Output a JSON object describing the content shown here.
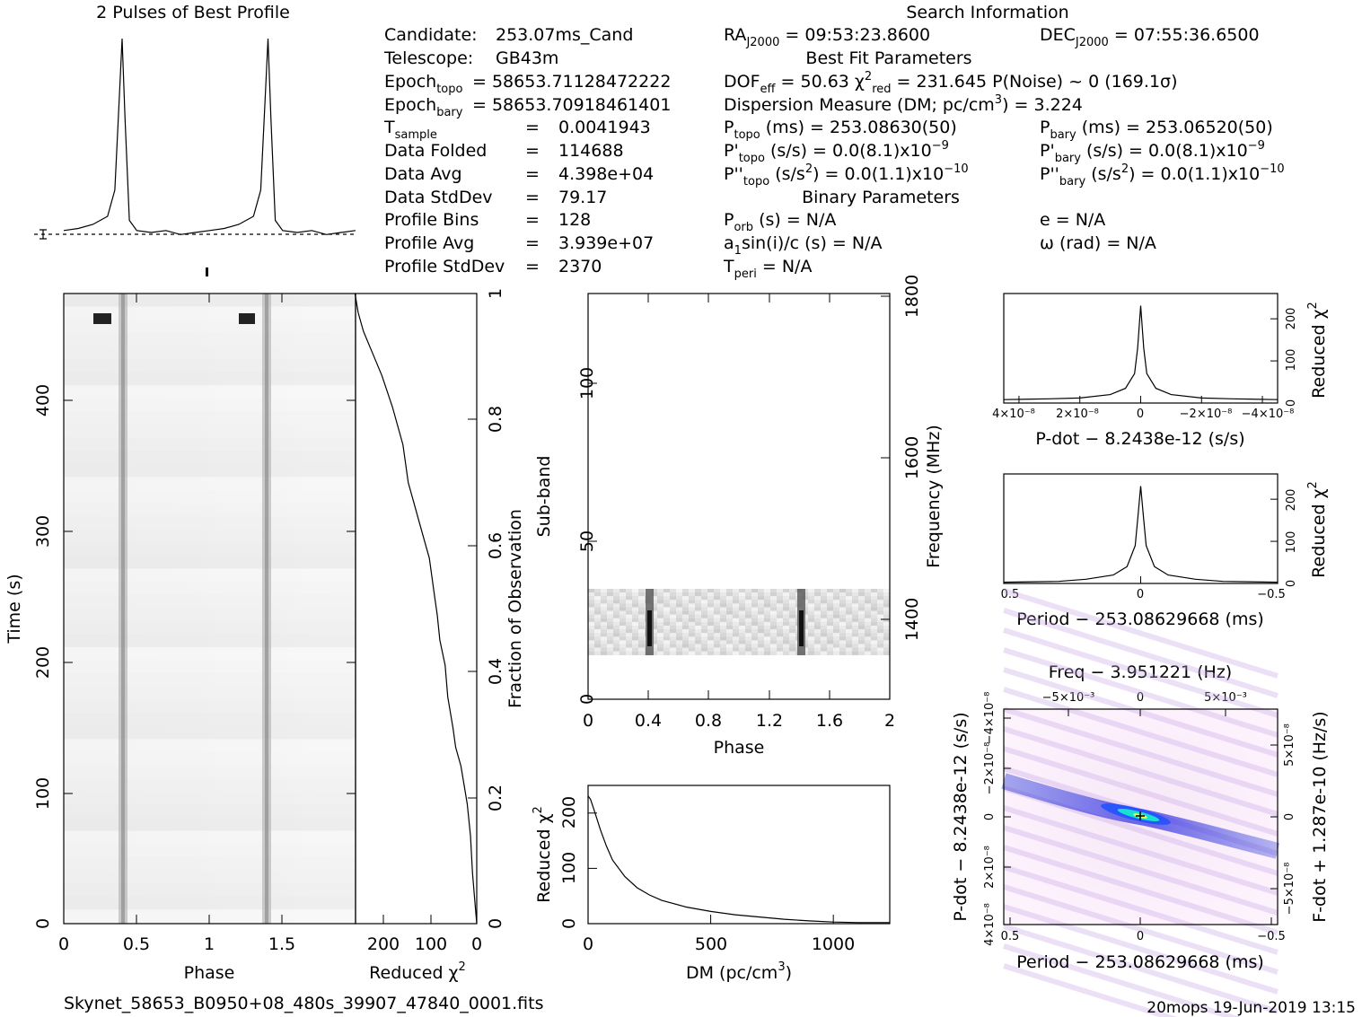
{
  "page_title": "2 Pulses of Best Profile",
  "search_title": "Search Information",
  "candidate_info": [
    {
      "label": "Candidate:",
      "value": "253.07ms_Cand"
    },
    {
      "label": "Telescope:",
      "value": "GB43m"
    },
    {
      "label": "Epoch topo",
      "value": "= 58653.71128472222"
    },
    {
      "label": "Epoch bary",
      "value": "= 58653.70918461401"
    },
    {
      "label": "T sample",
      "value": "0.0041943"
    },
    {
      "label": "Data Folded",
      "value": "114688"
    },
    {
      "label": "Data Avg",
      "value": "4.398e+04"
    },
    {
      "label": "Data StdDev",
      "value": "79.17"
    },
    {
      "label": "Profile Bins",
      "value": "128"
    },
    {
      "label": "Profile Avg",
      "value": "3.939e+07"
    },
    {
      "label": "Profile StdDev",
      "value": "2370"
    }
  ],
  "search_info": {
    "ra": "RA J2000 = 09:53:23.8600",
    "dec": "DEC J2000 = 07:55:36.6500",
    "best_fit_title": "Best Fit Parameters",
    "dof_line": "DOF eff = 50.63  χ² red = 231.645  P(Noise) ~ 0   (169.1σ)",
    "dm_line": "Dispersion Measure (DM; pc/cm³) = 3.224",
    "p_topo": "P topo (ms) =  253.08630(50)",
    "p_bary": "P bary (ms) =  253.06520(50)",
    "pd_topo": "P' topo (s/s) = 0.0(8.1)x10⁻⁹",
    "pd_bary": "P' bary (s/s) = 0.0(8.1)x10⁻⁹",
    "pdd_topo": "P'' topo (s/s²) = 0.0(1.1)x10⁻¹⁰",
    "pdd_bary": "P'' bary (s/s²) = 0.0(1.1)x10⁻¹⁰",
    "binary_title": "Binary Parameters",
    "p_orb": "P orb (s) = N/A",
    "e": "e = N/A",
    "a1sini": "a₁sin(i)/c (s) = N/A",
    "omega": "ω (rad) = N/A",
    "t_peri": "T peri = N/A"
  },
  "footer": {
    "filename": "Skynet_58653_B0950+08_480s_39907_47840_0001.fits",
    "stamp": "20mops 19-Jun-2019 13:15"
  },
  "chart_data": [
    {
      "id": "profile",
      "type": "line",
      "title": "2 Pulses of Best Profile",
      "x": [
        0,
        0.1,
        0.2,
        0.3,
        0.35,
        0.38,
        0.4,
        0.42,
        0.45,
        0.5,
        0.6,
        0.7,
        0.8,
        0.9,
        1.0,
        1.1,
        1.2,
        1.3,
        1.35,
        1.38,
        1.4,
        1.42,
        1.45,
        1.5,
        1.6,
        1.7,
        1.8,
        1.9,
        2.0
      ],
      "values": [
        0.05,
        0.06,
        0.08,
        0.12,
        0.25,
        0.7,
        1.0,
        0.6,
        0.1,
        0.05,
        0.04,
        0.05,
        0.03,
        0.04,
        0.05,
        0.06,
        0.08,
        0.12,
        0.25,
        0.7,
        1.0,
        0.6,
        0.1,
        0.05,
        0.04,
        0.05,
        0.03,
        0.04,
        0.05
      ]
    },
    {
      "id": "time-phase",
      "type": "heatmap",
      "xlabel": "Phase",
      "ylabel": "Time (s)",
      "x_ticks": [
        "0",
        "0.5",
        "1",
        "1.5"
      ],
      "y_ticks": [
        "0",
        "100",
        "200",
        "300",
        "400"
      ],
      "xlim": [
        0,
        2
      ],
      "ylim": [
        0,
        480
      ]
    },
    {
      "id": "chi2-vs-time",
      "type": "line",
      "xlabel": "Reduced χ²",
      "ylabel": "Fraction of Observation",
      "x_ticks": [
        "200",
        "100",
        "0"
      ],
      "y_ticks": [
        "0",
        "0.2",
        "0.4",
        "0.6",
        "0.8",
        "1"
      ],
      "xlim": [
        230,
        0
      ],
      "ylim": [
        0,
        1
      ],
      "x": [
        0,
        3,
        8,
        12,
        18,
        22,
        30,
        40,
        45,
        55,
        60,
        70,
        75,
        80,
        85,
        90,
        100,
        110,
        120,
        130,
        140,
        160,
        180,
        200,
        215,
        225,
        231
      ],
      "y": [
        0,
        0.03,
        0.08,
        0.14,
        0.19,
        0.21,
        0.25,
        0.28,
        0.31,
        0.36,
        0.41,
        0.45,
        0.49,
        0.52,
        0.55,
        0.58,
        0.61,
        0.64,
        0.67,
        0.7,
        0.76,
        0.82,
        0.87,
        0.91,
        0.94,
        0.97,
        1.0
      ]
    },
    {
      "id": "subband-phase",
      "type": "heatmap",
      "xlabel": "Phase",
      "ylabel": "Sub-band",
      "y2label": "Frequency (MHz)",
      "x_ticks": [
        "0",
        "0.4",
        "0.8",
        "1.2",
        "1.6",
        "2"
      ],
      "y_ticks": [
        "0",
        "50",
        "100"
      ],
      "y2_ticks": [
        "1400",
        "1600",
        "1800"
      ],
      "xlim": [
        0,
        2
      ],
      "ylim": [
        0,
        128
      ]
    },
    {
      "id": "dm-curve",
      "type": "line",
      "xlabel": "DM (pc/cm³)",
      "ylabel": "Reduced χ²",
      "x_ticks": [
        "0",
        "500",
        "1000"
      ],
      "y_ticks": [
        "0",
        "100",
        "200"
      ],
      "xlim": [
        0,
        1230
      ],
      "ylim": [
        0,
        250
      ],
      "x": [
        0,
        10,
        25,
        50,
        75,
        100,
        150,
        200,
        250,
        300,
        400,
        500,
        600,
        700,
        800,
        900,
        1000,
        1100,
        1230
      ],
      "y": [
        231,
        225,
        205,
        170,
        140,
        115,
        85,
        65,
        52,
        42,
        30,
        22,
        16,
        12,
        8,
        5,
        3,
        2,
        2
      ]
    },
    {
      "id": "pdot-curve",
      "type": "line",
      "xlabel": "P-dot − 8.2438e-12 (s/s)",
      "ylabel": "Reduced χ²",
      "x_ticks": [
        "4×10⁻⁸",
        "2×10⁻⁸",
        "0",
        "−2×10⁻⁸",
        "−4×10⁻⁸"
      ],
      "y_ticks": [
        "0",
        "100",
        "200"
      ],
      "xlim": [
        4.5e-08,
        -4.5e-08
      ],
      "ylim": [
        0,
        260
      ],
      "x": [
        4.5e-08,
        3e-08,
        2e-08,
        1e-08,
        5e-09,
        2e-09,
        1e-09,
        0,
        -1e-09,
        -2e-09,
        -5e-09,
        -1e-08,
        -2e-08,
        -3e-08,
        -4.5e-08
      ],
      "y": [
        8,
        10,
        12,
        20,
        35,
        70,
        130,
        231,
        130,
        70,
        35,
        20,
        12,
        10,
        8
      ]
    },
    {
      "id": "period-curve",
      "type": "line",
      "xlabel": "Period − 253.08629668 (ms)",
      "ylabel": "Reduced χ²",
      "x_ticks": [
        "0.5",
        "0",
        "−0.5"
      ],
      "y_ticks": [
        "0",
        "100",
        "200"
      ],
      "xlim": [
        0.5,
        -0.5
      ],
      "ylim": [
        0,
        260
      ],
      "x": [
        0.5,
        0.3,
        0.2,
        0.1,
        0.05,
        0.02,
        0.01,
        0,
        -0.01,
        -0.02,
        -0.05,
        -0.1,
        -0.2,
        -0.3,
        -0.5
      ],
      "y": [
        3,
        5,
        10,
        20,
        40,
        90,
        160,
        231,
        160,
        90,
        40,
        20,
        10,
        5,
        3
      ]
    },
    {
      "id": "p-pdot-plane",
      "type": "heatmap",
      "title": "Freq − 3.951221 (Hz)",
      "xlabel": "Period − 253.08629668 (ms)",
      "ylabel": "P-dot − 8.2438e-12 (s/s)",
      "y2label": "F-dot + 1.287e-10 (Hz/s)",
      "x_ticks": [
        "0.5",
        "0",
        "−0.5"
      ],
      "top_ticks": [
        "−5×10⁻³",
        "0",
        "5×10⁻³"
      ],
      "y_ticks": [
        "4×10⁻⁸",
        "2×10⁻⁸",
        "0",
        "−2×10⁻⁸",
        "−4×10⁻⁸"
      ],
      "y2_ticks": [
        "−5×10⁻⁸",
        "0",
        "5×10⁻⁸"
      ]
    }
  ]
}
